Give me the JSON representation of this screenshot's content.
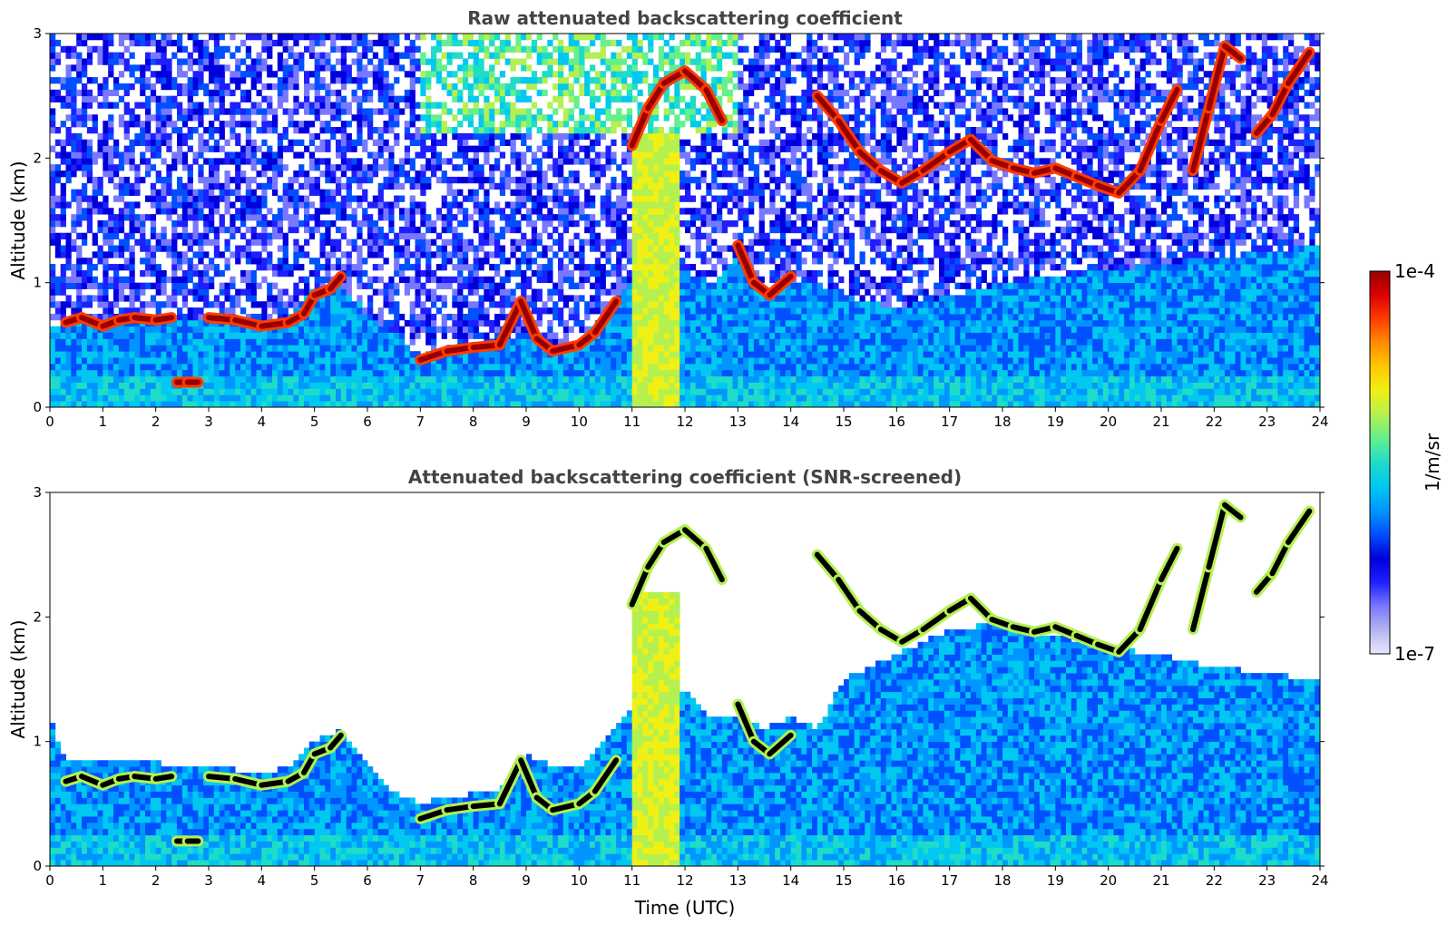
{
  "chart_data": [
    {
      "type": "heatmap",
      "title": "Raw attenuated backscattering coefficient",
      "xlabel": "",
      "ylabel": "Altitude (km)",
      "xlim": [
        0,
        24
      ],
      "ylim": [
        0,
        3
      ],
      "xticks": [
        "0",
        "1",
        "2",
        "3",
        "4",
        "5",
        "6",
        "7",
        "8",
        "9",
        "10",
        "11",
        "12",
        "13",
        "14",
        "15",
        "16",
        "17",
        "18",
        "19",
        "20",
        "21",
        "22",
        "23",
        "24"
      ],
      "yticks": [
        "0",
        "1",
        "2",
        "3"
      ],
      "screened": false,
      "layers": {
        "boundary_layer_top_km": [
          [
            0,
            0.65
          ],
          [
            0.3,
            0.7
          ],
          [
            0.6,
            0.75
          ],
          [
            1,
            0.7
          ],
          [
            1.5,
            0.72
          ],
          [
            2,
            0.72
          ],
          [
            2.3,
            0.7
          ],
          [
            3,
            0.72
          ],
          [
            3.5,
            0.7
          ],
          [
            4,
            0.68
          ],
          [
            4.5,
            0.72
          ],
          [
            5,
            0.95
          ],
          [
            5.5,
            1.0
          ],
          [
            6,
            0.75
          ],
          [
            6.5,
            0.6
          ],
          [
            7,
            0.42
          ],
          [
            7.5,
            0.45
          ],
          [
            8,
            0.48
          ],
          [
            8.5,
            0.52
          ],
          [
            9,
            0.6
          ],
          [
            9.5,
            0.5
          ],
          [
            10,
            0.5
          ],
          [
            10.5,
            0.8
          ],
          [
            11,
            1.0
          ],
          [
            11.5,
            1.2
          ],
          [
            12,
            1.1
          ],
          [
            12.5,
            1.0
          ],
          [
            13,
            1.2
          ],
          [
            13.5,
            0.9
          ],
          [
            14,
            1.0
          ],
          [
            14.5,
            1.0
          ],
          [
            15,
            0.9
          ],
          [
            15.5,
            0.85
          ],
          [
            16,
            0.8
          ],
          [
            16.5,
            0.85
          ],
          [
            17,
            0.9
          ],
          [
            18,
            1.0
          ],
          [
            19,
            1.05
          ],
          [
            20,
            1.1
          ],
          [
            21,
            1.15
          ],
          [
            22,
            1.2
          ],
          [
            23,
            1.25
          ],
          [
            24,
            1.3
          ]
        ],
        "cloud_base_km": [
          [
            0.3,
            0.68
          ],
          [
            0.6,
            0.72
          ],
          [
            1.0,
            0.65
          ],
          [
            1.3,
            0.7
          ],
          [
            1.6,
            0.72
          ],
          [
            2.0,
            0.7
          ],
          [
            2.3,
            0.72
          ],
          [
            2.4,
            0.2
          ],
          [
            2.6,
            0.2
          ],
          [
            2.8,
            0.2
          ],
          [
            3.0,
            0.72
          ],
          [
            3.5,
            0.7
          ],
          [
            4.0,
            0.65
          ],
          [
            4.5,
            0.68
          ],
          [
            4.8,
            0.75
          ],
          [
            5.0,
            0.9
          ],
          [
            5.3,
            0.95
          ],
          [
            5.5,
            1.05
          ],
          [
            7.0,
            0.38
          ],
          [
            7.5,
            0.45
          ],
          [
            8.0,
            0.48
          ],
          [
            8.5,
            0.5
          ],
          [
            8.9,
            0.85
          ],
          [
            9.2,
            0.55
          ],
          [
            9.5,
            0.45
          ],
          [
            10.0,
            0.5
          ],
          [
            10.3,
            0.6
          ],
          [
            10.7,
            0.85
          ],
          [
            11.0,
            2.1
          ],
          [
            11.3,
            2.4
          ],
          [
            11.6,
            2.6
          ],
          [
            12.0,
            2.7
          ],
          [
            12.4,
            2.55
          ],
          [
            12.7,
            2.3
          ],
          [
            13.0,
            1.3
          ],
          [
            13.3,
            1.0
          ],
          [
            13.6,
            0.9
          ],
          [
            14.0,
            1.05
          ],
          [
            14.5,
            2.5
          ],
          [
            14.9,
            2.3
          ],
          [
            15.3,
            2.05
          ],
          [
            15.7,
            1.9
          ],
          [
            16.1,
            1.8
          ],
          [
            16.5,
            1.9
          ],
          [
            17.0,
            2.05
          ],
          [
            17.4,
            2.15
          ],
          [
            17.8,
            1.98
          ],
          [
            18.2,
            1.92
          ],
          [
            18.6,
            1.88
          ],
          [
            19.0,
            1.92
          ],
          [
            19.4,
            1.85
          ],
          [
            19.8,
            1.78
          ],
          [
            20.2,
            1.72
          ],
          [
            20.6,
            1.9
          ],
          [
            21.0,
            2.3
          ],
          [
            21.3,
            2.55
          ],
          [
            21.6,
            1.9
          ],
          [
            21.9,
            2.4
          ],
          [
            22.2,
            2.9
          ],
          [
            22.5,
            2.8
          ],
          [
            22.8,
            2.2
          ],
          [
            23.1,
            2.35
          ],
          [
            23.4,
            2.6
          ],
          [
            23.8,
            2.85
          ]
        ]
      }
    },
    {
      "type": "heatmap",
      "title": "Attenuated backscattering coefficient (SNR-screened)",
      "xlabel": "Time (UTC)",
      "ylabel": "Altitude (km)",
      "xlim": [
        0,
        24
      ],
      "ylim": [
        0,
        3
      ],
      "xticks": [
        "0",
        "1",
        "2",
        "3",
        "4",
        "5",
        "6",
        "7",
        "8",
        "9",
        "10",
        "11",
        "12",
        "13",
        "14",
        "15",
        "16",
        "17",
        "18",
        "19",
        "20",
        "21",
        "22",
        "23",
        "24"
      ],
      "yticks": [
        "0",
        "1",
        "2",
        "3"
      ],
      "screened": true,
      "layers": {
        "boundary_layer_top_km": [
          [
            0,
            1.2
          ],
          [
            0.3,
            0.85
          ],
          [
            1,
            0.85
          ],
          [
            2,
            0.85
          ],
          [
            2.3,
            0.8
          ],
          [
            3,
            0.8
          ],
          [
            4,
            0.75
          ],
          [
            4.5,
            0.8
          ],
          [
            5,
            1.0
          ],
          [
            5.5,
            1.1
          ],
          [
            6,
            0.8
          ],
          [
            6.5,
            0.6
          ],
          [
            7,
            0.5
          ],
          [
            7.5,
            0.55
          ],
          [
            8,
            0.58
          ],
          [
            8.5,
            0.6
          ],
          [
            9,
            0.9
          ],
          [
            9.5,
            0.8
          ],
          [
            10,
            0.8
          ],
          [
            10.5,
            1.0
          ],
          [
            11,
            1.3
          ],
          [
            11.5,
            1.5
          ],
          [
            12,
            1.4
          ],
          [
            12.5,
            1.2
          ],
          [
            13,
            1.2
          ],
          [
            13.5,
            1.1
          ],
          [
            14,
            1.2
          ],
          [
            14.5,
            1.1
          ],
          [
            15,
            1.5
          ],
          [
            15.5,
            1.6
          ],
          [
            16,
            1.7
          ],
          [
            16.5,
            1.8
          ],
          [
            17,
            1.9
          ],
          [
            18,
            1.95
          ],
          [
            19,
            1.85
          ],
          [
            20,
            1.75
          ],
          [
            21,
            1.7
          ],
          [
            22,
            1.6
          ],
          [
            23,
            1.55
          ],
          [
            23.8,
            1.5
          ]
        ],
        "cloud_base_km": [
          [
            0.3,
            0.68
          ],
          [
            0.6,
            0.72
          ],
          [
            1.0,
            0.65
          ],
          [
            1.3,
            0.7
          ],
          [
            1.6,
            0.72
          ],
          [
            2.0,
            0.7
          ],
          [
            2.3,
            0.72
          ],
          [
            2.4,
            0.2
          ],
          [
            2.6,
            0.2
          ],
          [
            2.8,
            0.2
          ],
          [
            3.0,
            0.72
          ],
          [
            3.5,
            0.7
          ],
          [
            4.0,
            0.65
          ],
          [
            4.5,
            0.68
          ],
          [
            4.8,
            0.75
          ],
          [
            5.0,
            0.9
          ],
          [
            5.3,
            0.95
          ],
          [
            5.5,
            1.05
          ],
          [
            7.0,
            0.38
          ],
          [
            7.5,
            0.45
          ],
          [
            8.0,
            0.48
          ],
          [
            8.5,
            0.5
          ],
          [
            8.9,
            0.85
          ],
          [
            9.2,
            0.55
          ],
          [
            9.5,
            0.45
          ],
          [
            10.0,
            0.5
          ],
          [
            10.3,
            0.6
          ],
          [
            10.7,
            0.85
          ],
          [
            11.0,
            2.1
          ],
          [
            11.3,
            2.4
          ],
          [
            11.6,
            2.6
          ],
          [
            12.0,
            2.7
          ],
          [
            12.4,
            2.55
          ],
          [
            12.7,
            2.3
          ],
          [
            13.0,
            1.3
          ],
          [
            13.3,
            1.0
          ],
          [
            13.6,
            0.9
          ],
          [
            14.0,
            1.05
          ],
          [
            14.5,
            2.5
          ],
          [
            14.9,
            2.3
          ],
          [
            15.3,
            2.05
          ],
          [
            15.7,
            1.9
          ],
          [
            16.1,
            1.8
          ],
          [
            16.5,
            1.9
          ],
          [
            17.0,
            2.05
          ],
          [
            17.4,
            2.15
          ],
          [
            17.8,
            1.98
          ],
          [
            18.2,
            1.92
          ],
          [
            18.6,
            1.88
          ],
          [
            19.0,
            1.92
          ],
          [
            19.4,
            1.85
          ],
          [
            19.8,
            1.78
          ],
          [
            20.2,
            1.72
          ],
          [
            20.6,
            1.9
          ],
          [
            21.0,
            2.3
          ],
          [
            21.3,
            2.55
          ],
          [
            21.6,
            1.9
          ],
          [
            21.9,
            2.4
          ],
          [
            22.2,
            2.9
          ],
          [
            22.5,
            2.8
          ],
          [
            22.8,
            2.2
          ],
          [
            23.1,
            2.35
          ],
          [
            23.4,
            2.6
          ],
          [
            23.8,
            2.85
          ]
        ]
      }
    }
  ],
  "colorbar": {
    "label": "1/m/sr",
    "max_label": "1e-4",
    "min_label": "1e-7",
    "scale": "log",
    "colors": [
      "#e8e8ff",
      "#b4b4f0",
      "#7878ff",
      "#1e1eff",
      "#0000dc",
      "#0050ff",
      "#0096ff",
      "#00c8f0",
      "#1edcc8",
      "#64f08c",
      "#b4f050",
      "#f0f014",
      "#ffc800",
      "#ff8c00",
      "#ff3c00",
      "#dc0000",
      "#960000"
    ]
  }
}
